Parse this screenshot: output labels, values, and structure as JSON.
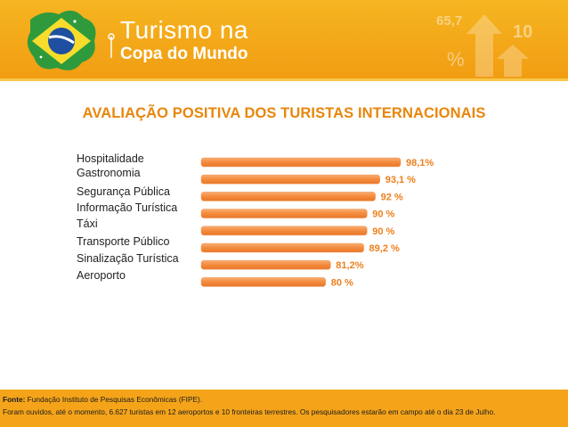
{
  "header": {
    "title_line1": "Turismo na",
    "title_line2": "Copa do Mundo",
    "deco_number1": "65,7",
    "deco_number2": "10",
    "deco_percent": "%"
  },
  "chart_data": {
    "type": "bar",
    "orientation": "horizontal",
    "title": "AVALIAÇÃO POSITIVA DOS TURISTAS INTERNACIONAIS",
    "categories": [
      "Hospitalidade",
      "Gastronomia",
      "Segurança Pública",
      "Informação Turística",
      "Táxi",
      "Transporte Público",
      "Sinalização Turística",
      "Aeroporto"
    ],
    "values": [
      98.1,
      93.1,
      92,
      90,
      90,
      89.2,
      81.2,
      80
    ],
    "value_labels": [
      "98,1%",
      "93,1 %",
      "92 %",
      "90 %",
      "90 %",
      "89,2 %",
      "81,2%",
      "80 %"
    ],
    "xlabel": "",
    "ylabel": "",
    "xlim": [
      0,
      100
    ],
    "bar_color": "#f48a3c",
    "label_color": "#ee7f1d"
  },
  "footer": {
    "source_label": "Fonte:",
    "source_text": " Fundação Instituto de Pesquisas Econômicas (FIPE).",
    "note": "Foram ouvidos, até o momento, 6.627 turistas em 12 aeroportos e 10 fronteiras terrestres. Os pesquisadores estarão em campo até o dia 23 de Julho."
  },
  "colors": {
    "header_orange": "#f4a81c",
    "title_orange": "#e8860c",
    "footer_orange": "#f5a41a"
  }
}
